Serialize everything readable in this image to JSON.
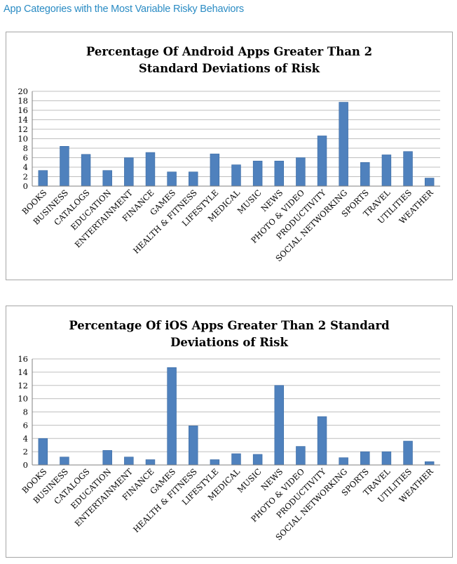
{
  "page": {
    "heading": "App Categories with the Most Variable Risky Behaviors",
    "colors": {
      "heading": "#2b8cc4",
      "bar": "#4f81bd",
      "bar_edge": "#3a6aa3",
      "grid": "#bfbfbf",
      "frame": "#a6a6a6"
    }
  },
  "chart_data": [
    {
      "type": "bar",
      "title_lines": [
        "Percentage Of Android Apps Greater Than 2",
        "Standard Deviations  of Risk"
      ],
      "xlabel": "",
      "ylabel": "",
      "ylim": [
        0,
        20
      ],
      "yticks": [
        0,
        2,
        4,
        6,
        8,
        10,
        12,
        14,
        16,
        18,
        20
      ],
      "grid": true,
      "legend": "none",
      "categories": [
        "BOOKS",
        "BUSINESS",
        "CATALOGS",
        "EDUCATION",
        "ENTERTAINMENT",
        "FINANCE",
        "GAMES",
        "HEALTH & FITNESS",
        "LIFESTYLE",
        "MEDICAL",
        "MUSIC",
        "NEWS",
        "PHOTO & VIDEO",
        "PRODUCTIVITY",
        "SOCIAL NETWORKING",
        "SPORTS",
        "TRAVEL",
        "UTILITIES",
        "WEATHER"
      ],
      "values": [
        3.3,
        8.4,
        6.7,
        3.3,
        6.0,
        7.1,
        3.0,
        3.0,
        6.8,
        4.5,
        5.3,
        5.3,
        6.0,
        10.6,
        17.7,
        5.0,
        6.6,
        7.3,
        1.7
      ]
    },
    {
      "type": "bar",
      "title_lines": [
        "Percentage Of iOS Apps Greater Than 2 Standard",
        "Deviations of Risk"
      ],
      "xlabel": "",
      "ylabel": "",
      "ylim": [
        0,
        16
      ],
      "yticks": [
        0,
        2,
        4,
        6,
        8,
        10,
        12,
        14,
        16
      ],
      "grid": true,
      "legend": "none",
      "categories": [
        "BOOKS",
        "BUSINESS",
        "CATALOGS",
        "EDUCATION",
        "ENTERTAINMENT",
        "FINANCE",
        "GAMES",
        "HEALTH & FITNESS",
        "LIFESTYLE",
        "MEDICAL",
        "MUSIC",
        "NEWS",
        "PHOTO & VIDEO",
        "PRODUCTIVITY",
        "SOCIAL NETWORKING",
        "SPORTS",
        "TRAVEL",
        "UTILITIES",
        "WEATHER"
      ],
      "values": [
        4.0,
        1.2,
        0,
        2.2,
        1.2,
        0.8,
        14.7,
        5.9,
        0.8,
        1.7,
        1.6,
        12.0,
        2.8,
        7.3,
        1.1,
        2.0,
        2.0,
        3.6,
        0.5
      ]
    }
  ]
}
